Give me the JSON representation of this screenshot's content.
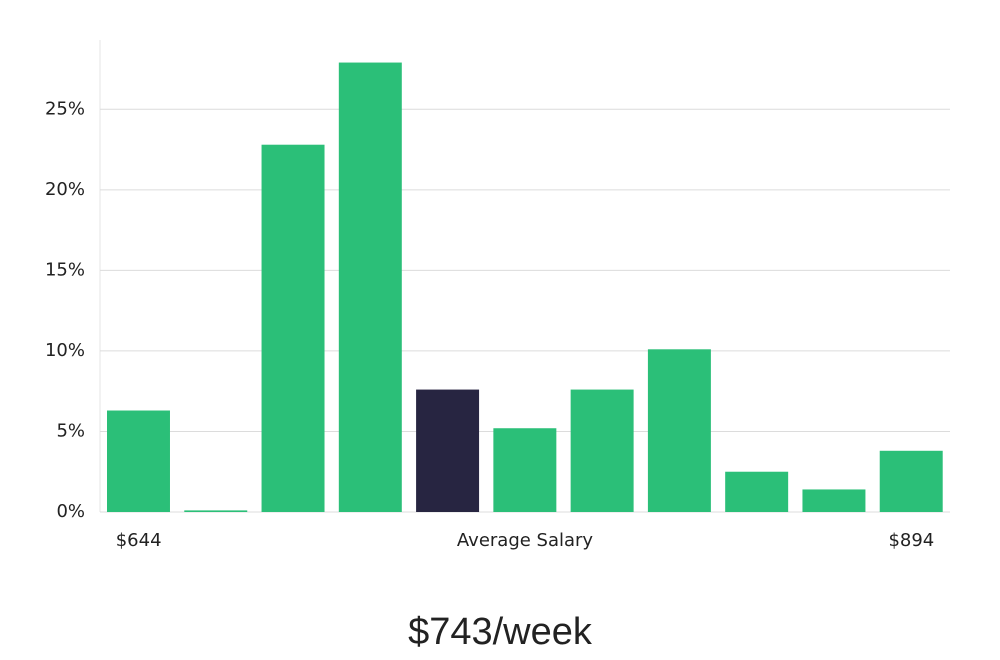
{
  "chart_data": {
    "type": "bar",
    "categories": [
      "$644",
      null,
      null,
      null,
      null,
      "Average Salary",
      null,
      null,
      null,
      null,
      "$894"
    ],
    "values": [
      6.3,
      0.1,
      22.8,
      27.9,
      7.6,
      5.2,
      7.6,
      10.1,
      2.5,
      1.4,
      3.8
    ],
    "colors": [
      "#2bbf78",
      "#2bbf78",
      "#2bbf78",
      "#2bbf78",
      "#272541",
      "#2bbf78",
      "#2bbf78",
      "#2bbf78",
      "#2bbf78",
      "#2bbf78",
      "#2bbf78"
    ],
    "ylim": [
      0,
      29.3
    ],
    "yticks": [
      {
        "value": 0,
        "label": "0%"
      },
      {
        "value": 5,
        "label": "5%"
      },
      {
        "value": 10,
        "label": "10%"
      },
      {
        "value": 15,
        "label": "15%"
      },
      {
        "value": 20,
        "label": "20%"
      },
      {
        "value": 25,
        "label": "25%"
      }
    ],
    "grid": true,
    "annotation": "$743/week"
  }
}
